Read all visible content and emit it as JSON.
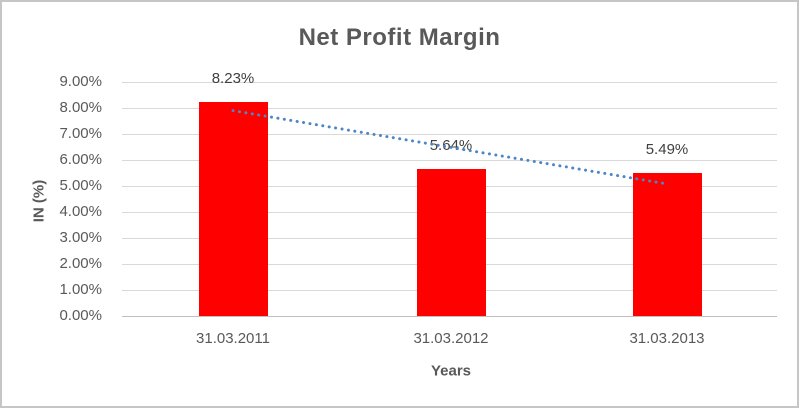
{
  "chart_data": {
    "type": "bar",
    "title": "Net Profit Margin",
    "xlabel": "Years",
    "ylabel": "IN (%)",
    "categories": [
      "31.03.2011",
      "31.03.2012",
      "31.03.2013"
    ],
    "series": [
      {
        "name": "Net Profit Margin",
        "values": [
          8.23,
          5.64,
          5.49
        ]
      }
    ],
    "data_labels": [
      "8.23%",
      "5.64%",
      "5.49%"
    ],
    "ytick_labels": [
      "0.00%",
      "1.00%",
      "2.00%",
      "3.00%",
      "4.00%",
      "5.00%",
      "6.00%",
      "7.00%",
      "8.00%",
      "9.00%"
    ],
    "ylim": [
      0,
      9
    ],
    "grid": true,
    "legend": "none",
    "bar_color": "#ff0000",
    "trendline": {
      "style": "dotted",
      "color": "#4e86c4",
      "start_pct": 7.9,
      "end_pct": 5.08
    }
  }
}
